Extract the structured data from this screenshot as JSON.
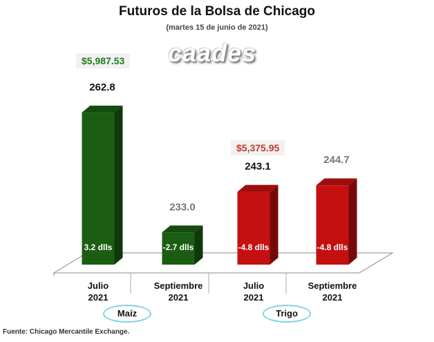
{
  "title": "Futuros de la Bolsa de Chicago",
  "subtitle": "(martes 15 de junio de 2021)",
  "logo_text": "caades",
  "source": "Fuente: Chicago Mercantile Exchange.",
  "prices": {
    "maiz": "$5,987.53",
    "trigo": "$5,375.95"
  },
  "colors": {
    "maiz": "#1b5e13",
    "trigo": "#c41010",
    "price_green": "#1e7d1e",
    "price_red": "#c0392b"
  },
  "groups": [
    "Maíz",
    "Trigo"
  ],
  "chart_data": {
    "type": "bar",
    "title": "Futuros de la Bolsa de Chicago",
    "subtitle": "(martes 15 de junio de 2021)",
    "categories": [
      "Julio 2021",
      "Septiembre 2021",
      "Julio 2021",
      "Septiembre 2021"
    ],
    "category_lines": [
      [
        "Julio",
        "2021"
      ],
      [
        "Septiembre",
        "2021"
      ],
      [
        "Julio",
        "2021"
      ],
      [
        "Septiembre",
        "2021"
      ]
    ],
    "values": [
      262.8,
      233.0,
      243.1,
      244.7
    ],
    "value_labels": [
      "262.8",
      "233.0",
      "243.1",
      "244.7"
    ],
    "changes": [
      "3.2 dlls",
      "-2.7 dlls",
      "-4.8 dlls",
      "-4.8 dlls"
    ],
    "groups": [
      "Maíz",
      "Maíz",
      "Trigo",
      "Trigo"
    ],
    "ylim": [
      225,
      265
    ],
    "grid": false
  }
}
